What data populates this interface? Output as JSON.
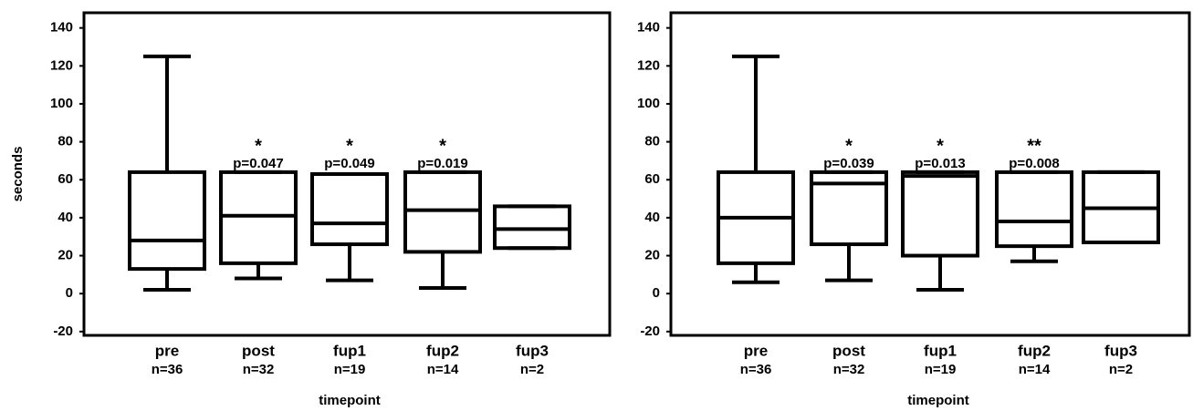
{
  "chart_data": [
    {
      "type": "box",
      "y_label": "seconds",
      "x_label": "timepoint",
      "categories": [
        "pre",
        "post",
        "fup1",
        "fup2",
        "fup3"
      ],
      "n_labels": [
        "n=36",
        "n=32",
        "n=19",
        "n=14",
        "n=2"
      ],
      "significance": [
        null,
        "*",
        "*",
        "*",
        null
      ],
      "p_labels": [
        null,
        "p=0.047",
        "p=0.049",
        "p=0.019",
        null
      ],
      "min": [
        2,
        8,
        7,
        3,
        24
      ],
      "q1": [
        13,
        16,
        26,
        22,
        24
      ],
      "median": [
        28,
        41,
        37,
        44,
        34
      ],
      "q3": [
        64,
        64,
        63,
        64,
        46
      ],
      "max": [
        125,
        64,
        63,
        64,
        46
      ],
      "color": "#000000",
      "ylim": [
        -22,
        148
      ],
      "yticks": [
        -20,
        0,
        20,
        40,
        60,
        80,
        100,
        120,
        140
      ]
    },
    {
      "type": "box",
      "x_label": "timepoint",
      "categories": [
        "pre",
        "post",
        "fup1",
        "fup2",
        "fup3"
      ],
      "n_labels": [
        "n=36",
        "n=32",
        "n=19",
        "n=14",
        "n=2"
      ],
      "significance": [
        null,
        "*",
        "*",
        "**",
        null
      ],
      "p_labels": [
        null,
        "p=0.039",
        "p=0.013",
        "p=0.008",
        null
      ],
      "min": [
        6,
        7,
        2,
        17,
        27
      ],
      "q1": [
        16,
        26,
        20,
        25,
        27
      ],
      "median": [
        40,
        58,
        62,
        38,
        45
      ],
      "q3": [
        64,
        64,
        64,
        64,
        64
      ],
      "max": [
        125,
        64,
        64,
        64,
        64
      ],
      "color": "#000000",
      "ylim": [
        -22,
        148
      ],
      "yticks": [
        -20,
        0,
        20,
        40,
        60,
        80,
        100,
        120,
        140
      ]
    }
  ]
}
